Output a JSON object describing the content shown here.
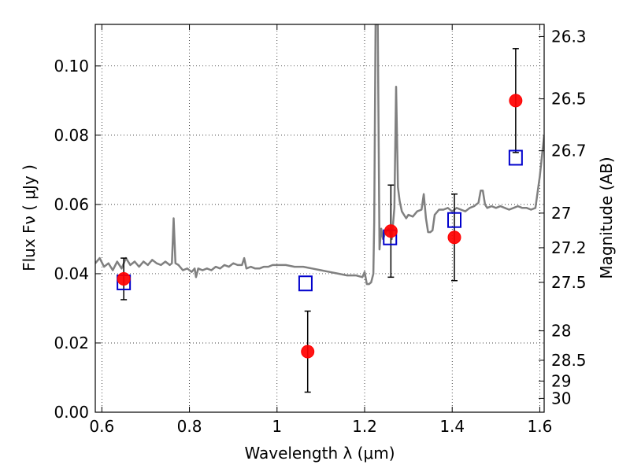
{
  "chart_data": {
    "type": "scatter",
    "xlabel": "Wavelength  λ (μm)",
    "ylabel": "Flux  Fν  ( μJy )",
    "ylabel_right": "Magnitude (AB)",
    "xlim": [
      0.585,
      1.61
    ],
    "ylim": [
      0.0,
      0.112
    ],
    "grid": true,
    "x_ticks": [
      {
        "value": 0.6,
        "label": "0.6"
      },
      {
        "value": 0.8,
        "label": "0.8"
      },
      {
        "value": 1.0,
        "label": "1"
      },
      {
        "value": 1.2,
        "label": "1.2"
      },
      {
        "value": 1.4,
        "label": "1.4"
      },
      {
        "value": 1.6,
        "label": "1.6"
      }
    ],
    "y_ticks": [
      {
        "value": 0.0,
        "label": "0.00"
      },
      {
        "value": 0.02,
        "label": "0.02"
      },
      {
        "value": 0.04,
        "label": "0.04"
      },
      {
        "value": 0.06,
        "label": "0.06"
      },
      {
        "value": 0.08,
        "label": "0.08"
      },
      {
        "value": 0.1,
        "label": "0.10"
      }
    ],
    "right_ticks": [
      {
        "flux": 0.1085,
        "label": "26.3"
      },
      {
        "flux": 0.0905,
        "label": "26.5"
      },
      {
        "flux": 0.0755,
        "label": "26.7"
      },
      {
        "flux": 0.0575,
        "label": "27"
      },
      {
        "flux": 0.0475,
        "label": "27.2"
      },
      {
        "flux": 0.0375,
        "label": "27.5"
      },
      {
        "flux": 0.0235,
        "label": "28"
      },
      {
        "flux": 0.015,
        "label": "28.5"
      },
      {
        "flux": 0.009,
        "label": "29"
      },
      {
        "flux": 0.004,
        "label": "30"
      }
    ],
    "series": [
      {
        "type": "line",
        "color": "#808080",
        "points": [
          [
            0.585,
            0.043
          ],
          [
            0.595,
            0.0445
          ],
          [
            0.605,
            0.042
          ],
          [
            0.615,
            0.043
          ],
          [
            0.625,
            0.041
          ],
          [
            0.635,
            0.0435
          ],
          [
            0.645,
            0.0415
          ],
          [
            0.655,
            0.0445
          ],
          [
            0.665,
            0.0425
          ],
          [
            0.675,
            0.0435
          ],
          [
            0.685,
            0.042
          ],
          [
            0.695,
            0.0435
          ],
          [
            0.705,
            0.0425
          ],
          [
            0.715,
            0.044
          ],
          [
            0.725,
            0.043
          ],
          [
            0.735,
            0.0425
          ],
          [
            0.745,
            0.0435
          ],
          [
            0.755,
            0.0425
          ],
          [
            0.76,
            0.043
          ],
          [
            0.764,
            0.056
          ],
          [
            0.768,
            0.043
          ],
          [
            0.775,
            0.0425
          ],
          [
            0.785,
            0.041
          ],
          [
            0.795,
            0.0415
          ],
          [
            0.805,
            0.0405
          ],
          [
            0.812,
            0.0415
          ],
          [
            0.815,
            0.039
          ],
          [
            0.82,
            0.0415
          ],
          [
            0.83,
            0.041
          ],
          [
            0.84,
            0.0415
          ],
          [
            0.85,
            0.041
          ],
          [
            0.86,
            0.042
          ],
          [
            0.87,
            0.0415
          ],
          [
            0.88,
            0.0425
          ],
          [
            0.89,
            0.042
          ],
          [
            0.9,
            0.043
          ],
          [
            0.91,
            0.0425
          ],
          [
            0.92,
            0.0425
          ],
          [
            0.925,
            0.0445
          ],
          [
            0.93,
            0.0415
          ],
          [
            0.94,
            0.042
          ],
          [
            0.95,
            0.0415
          ],
          [
            0.96,
            0.0415
          ],
          [
            0.97,
            0.042
          ],
          [
            0.98,
            0.042
          ],
          [
            0.99,
            0.0425
          ],
          [
            1.0,
            0.0425
          ],
          [
            1.02,
            0.0425
          ],
          [
            1.04,
            0.042
          ],
          [
            1.06,
            0.042
          ],
          [
            1.08,
            0.0415
          ],
          [
            1.1,
            0.041
          ],
          [
            1.12,
            0.0405
          ],
          [
            1.14,
            0.04
          ],
          [
            1.16,
            0.0395
          ],
          [
            1.18,
            0.0395
          ],
          [
            1.195,
            0.039
          ],
          [
            1.2,
            0.0405
          ],
          [
            1.205,
            0.037
          ],
          [
            1.21,
            0.037
          ],
          [
            1.215,
            0.0375
          ],
          [
            1.22,
            0.04
          ],
          [
            1.222,
            0.055
          ],
          [
            1.225,
            0.112
          ],
          [
            1.23,
            0.112
          ],
          [
            1.234,
            0.047
          ],
          [
            1.238,
            0.053
          ],
          [
            1.242,
            0.05
          ],
          [
            1.248,
            0.052
          ],
          [
            1.255,
            0.053
          ],
          [
            1.262,
            0.05
          ],
          [
            1.268,
            0.059
          ],
          [
            1.272,
            0.094
          ],
          [
            1.276,
            0.065
          ],
          [
            1.28,
            0.061
          ],
          [
            1.285,
            0.058
          ],
          [
            1.29,
            0.057
          ],
          [
            1.295,
            0.056
          ],
          [
            1.3,
            0.057
          ],
          [
            1.31,
            0.0565
          ],
          [
            1.32,
            0.058
          ],
          [
            1.33,
            0.0585
          ],
          [
            1.335,
            0.063
          ],
          [
            1.34,
            0.056
          ],
          [
            1.345,
            0.052
          ],
          [
            1.35,
            0.052
          ],
          [
            1.355,
            0.0525
          ],
          [
            1.36,
            0.057
          ],
          [
            1.37,
            0.0585
          ],
          [
            1.38,
            0.0585
          ],
          [
            1.39,
            0.059
          ],
          [
            1.4,
            0.058
          ],
          [
            1.41,
            0.059
          ],
          [
            1.42,
            0.0585
          ],
          [
            1.43,
            0.058
          ],
          [
            1.44,
            0.059
          ],
          [
            1.45,
            0.0595
          ],
          [
            1.46,
            0.0605
          ],
          [
            1.465,
            0.064
          ],
          [
            1.47,
            0.064
          ],
          [
            1.475,
            0.06
          ],
          [
            1.48,
            0.059
          ],
          [
            1.49,
            0.0595
          ],
          [
            1.5,
            0.059
          ],
          [
            1.51,
            0.0595
          ],
          [
            1.52,
            0.059
          ],
          [
            1.53,
            0.0585
          ],
          [
            1.54,
            0.059
          ],
          [
            1.55,
            0.0595
          ],
          [
            1.56,
            0.059
          ],
          [
            1.57,
            0.059
          ],
          [
            1.58,
            0.0585
          ],
          [
            1.59,
            0.059
          ],
          [
            1.6,
            0.068
          ],
          [
            1.61,
            0.08
          ]
        ]
      },
      {
        "type": "scatter",
        "marker": "circle",
        "color": "#ff0000",
        "points": [
          {
            "x": 0.65,
            "y": 0.0385,
            "err": 0.006
          },
          {
            "x": 1.07,
            "y": 0.0175,
            "err": 0.0117
          },
          {
            "x": 1.26,
            "y": 0.0523,
            "err": 0.0133
          },
          {
            "x": 1.405,
            "y": 0.0505,
            "err": 0.0125
          },
          {
            "x": 1.545,
            "y": 0.09,
            "err": 0.015
          }
        ]
      },
      {
        "type": "scatter",
        "marker": "open-square",
        "color": "#0000cc",
        "points": [
          {
            "x": 0.65,
            "y": 0.0375
          },
          {
            "x": 1.065,
            "y": 0.0372
          },
          {
            "x": 1.258,
            "y": 0.0505
          },
          {
            "x": 1.405,
            "y": 0.0555
          },
          {
            "x": 1.545,
            "y": 0.0735
          }
        ]
      }
    ]
  }
}
